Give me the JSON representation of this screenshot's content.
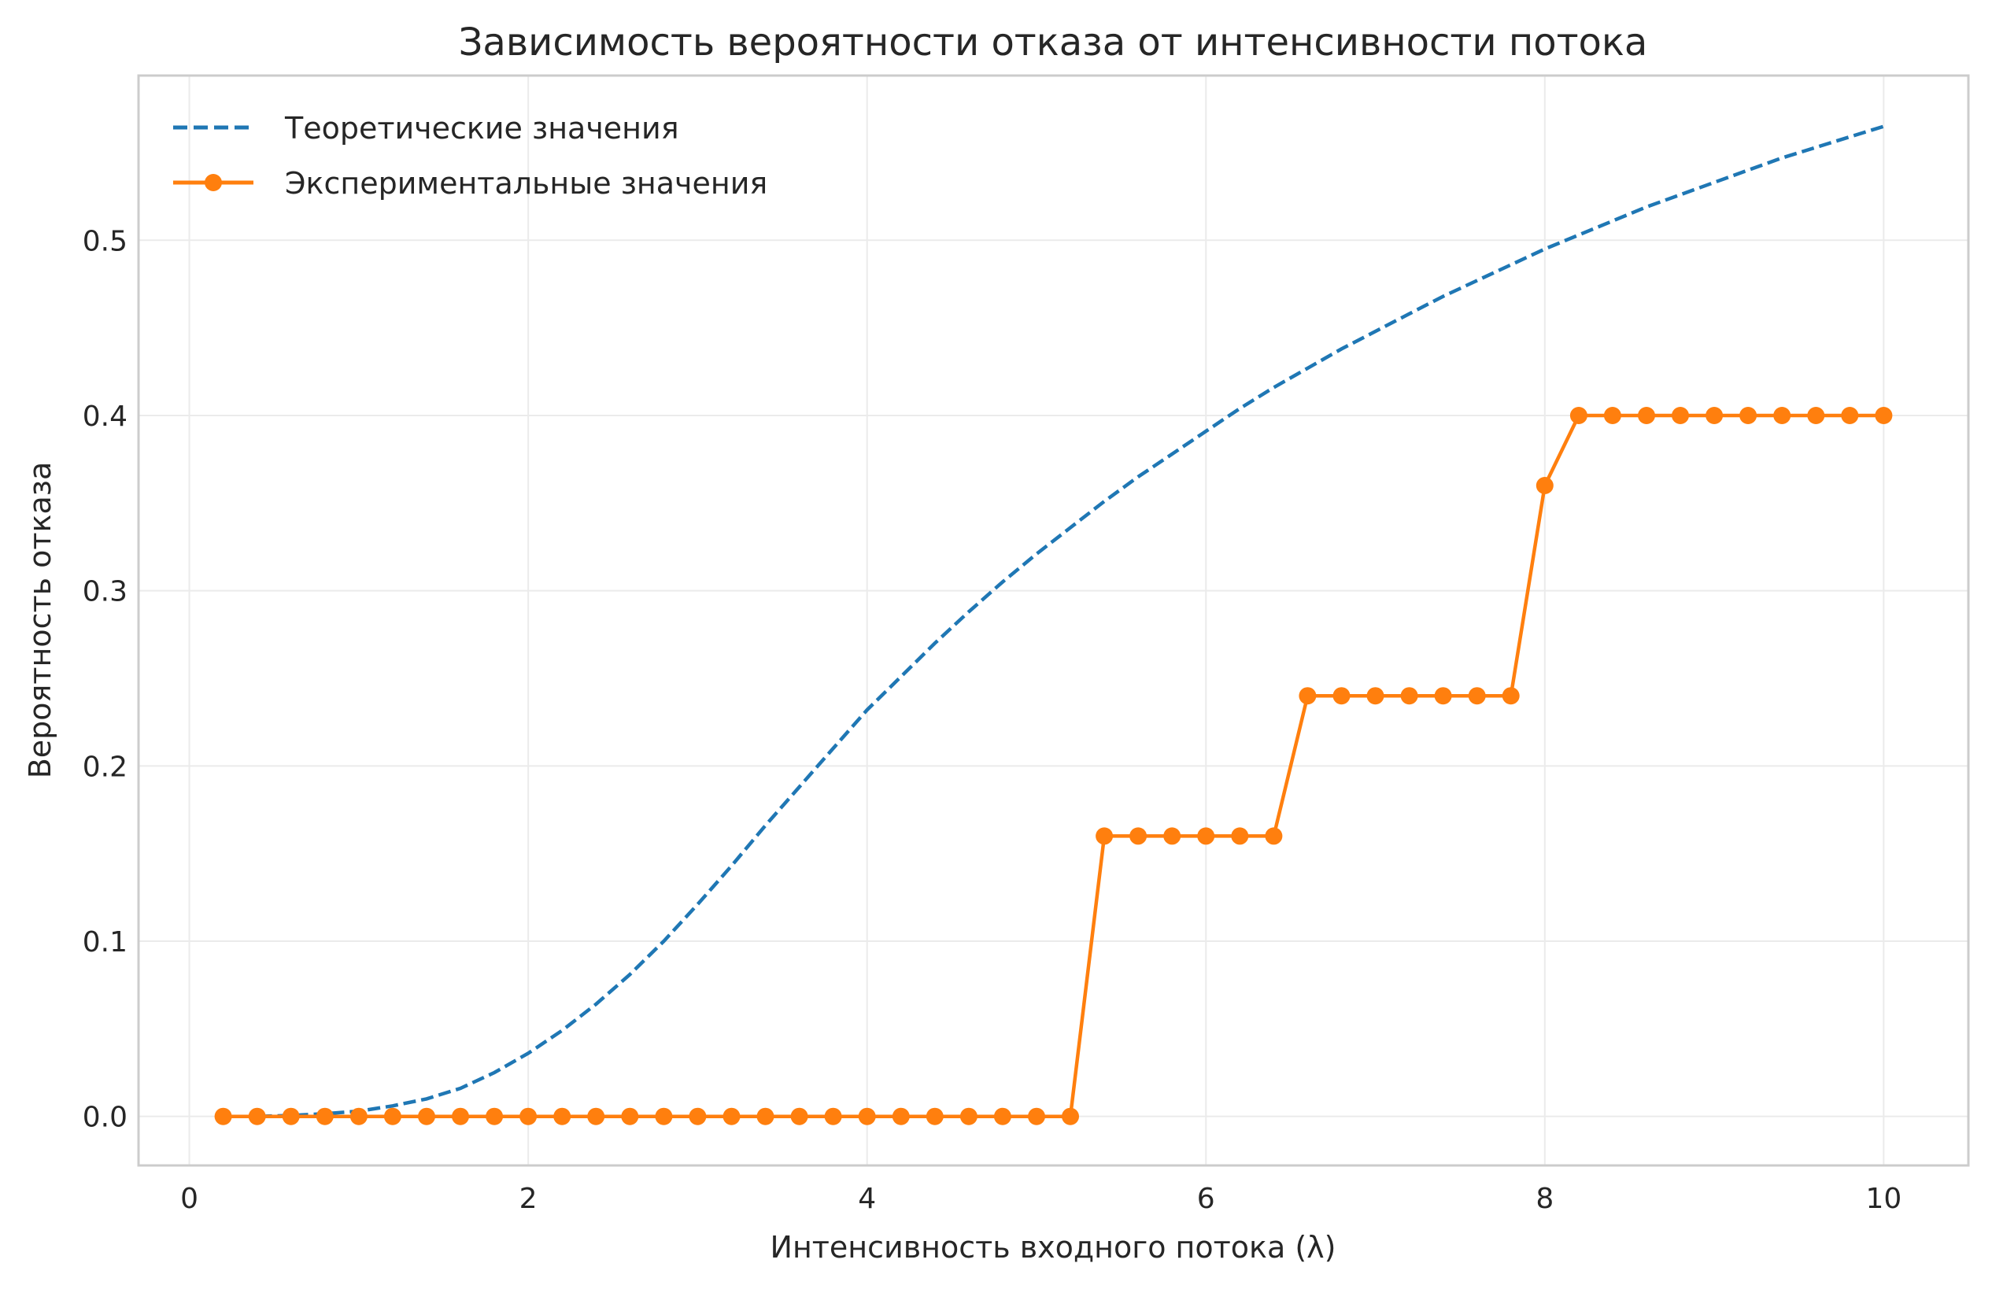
{
  "chart_data": {
    "type": "line",
    "title": "Зависимость вероятности отказа от интенсивности потока",
    "xlabel": "Интенсивность входного потока (λ)",
    "ylabel": "Вероятность отказа",
    "xlim": [
      -0.3,
      10.5
    ],
    "ylim": [
      -0.028,
      0.594
    ],
    "xticks": [
      0,
      2,
      4,
      6,
      8,
      10
    ],
    "xtick_labels": [
      "0",
      "2",
      "4",
      "6",
      "8",
      "10"
    ],
    "yticks": [
      0.0,
      0.1,
      0.2,
      0.3,
      0.4,
      0.5
    ],
    "ytick_labels": [
      "0.0",
      "0.1",
      "0.2",
      "0.3",
      "0.4",
      "0.5"
    ],
    "grid": true,
    "legend_position": "top-left",
    "series": [
      {
        "name": "Теоретические значения",
        "color": "#1f77b4",
        "style": "dashed",
        "x": [
          0.2,
          0.4,
          0.6,
          0.8,
          1.0,
          1.2,
          1.4,
          1.6,
          1.8,
          2.0,
          2.2,
          2.4,
          2.6,
          2.8,
          3.0,
          3.2,
          3.4,
          3.6,
          3.8,
          4.0,
          4.2,
          4.4,
          4.6,
          4.8,
          5.0,
          5.2,
          5.4,
          5.6,
          5.8,
          6.0,
          6.2,
          6.4,
          6.6,
          6.8,
          7.0,
          7.2,
          7.4,
          7.6,
          7.8,
          8.0,
          8.2,
          8.4,
          8.6,
          8.8,
          9.0,
          9.2,
          9.4,
          9.6,
          9.8,
          10.0
        ],
        "y": [
          0.0,
          0.0,
          0.0005,
          0.0015,
          0.003,
          0.006,
          0.01,
          0.016,
          0.025,
          0.036,
          0.049,
          0.064,
          0.081,
          0.1,
          0.121,
          0.143,
          0.166,
          0.188,
          0.21,
          0.232,
          0.251,
          0.27,
          0.288,
          0.305,
          0.321,
          0.336,
          0.351,
          0.365,
          0.378,
          0.391,
          0.404,
          0.416,
          0.427,
          0.438,
          0.448,
          0.458,
          0.468,
          0.477,
          0.486,
          0.495,
          0.503,
          0.511,
          0.519,
          0.526,
          0.533,
          0.54,
          0.547,
          0.553,
          0.559,
          0.565
        ]
      },
      {
        "name": "Экспериментальные значения",
        "color": "#ff7f0e",
        "style": "solid-markers",
        "x": [
          0.2,
          0.4,
          0.6,
          0.8,
          1.0,
          1.2,
          1.4,
          1.6,
          1.8,
          2.0,
          2.2,
          2.4,
          2.6,
          2.8,
          3.0,
          3.2,
          3.4,
          3.6,
          3.8,
          4.0,
          4.2,
          4.4,
          4.6,
          4.8,
          5.0,
          5.2,
          5.4,
          5.6,
          5.8,
          6.0,
          6.2,
          6.4,
          6.6,
          6.8,
          7.0,
          7.2,
          7.4,
          7.6,
          7.8,
          8.0,
          8.2,
          8.4,
          8.6,
          8.8,
          9.0,
          9.2,
          9.4,
          9.6,
          9.8,
          10.0
        ],
        "y": [
          0.0,
          0.0,
          0.0,
          0.0,
          0.0,
          0.0,
          0.0,
          0.0,
          0.0,
          0.0,
          0.0,
          0.0,
          0.0,
          0.0,
          0.0,
          0.0,
          0.0,
          0.0,
          0.0,
          0.0,
          0.0,
          0.0,
          0.0,
          0.0,
          0.0,
          0.0,
          0.16,
          0.16,
          0.16,
          0.16,
          0.16,
          0.16,
          0.24,
          0.24,
          0.24,
          0.24,
          0.24,
          0.24,
          0.24,
          0.36,
          0.4,
          0.4,
          0.4,
          0.4,
          0.4,
          0.4,
          0.4,
          0.4,
          0.4,
          0.4
        ]
      }
    ]
  }
}
